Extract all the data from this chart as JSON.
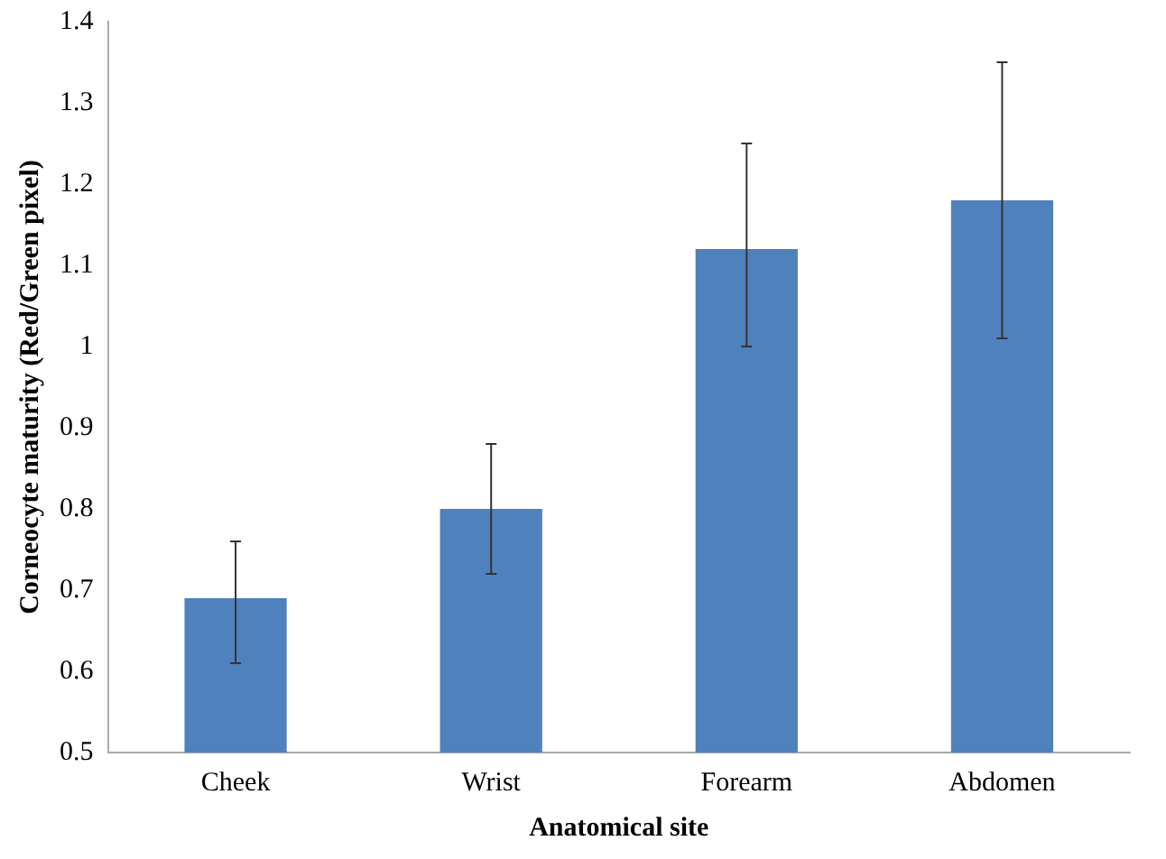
{
  "chart_data": {
    "type": "bar",
    "xlabel": "Anatomical site",
    "ylabel": "Corneocyte maturity (Red/Green pixel)",
    "categories": [
      "Cheek",
      "Wrist",
      "Forearm",
      "Abdomen"
    ],
    "values": [
      0.69,
      0.8,
      1.12,
      1.18
    ],
    "errors": [
      [
        0.61,
        0.76
      ],
      [
        0.72,
        0.88
      ],
      [
        1.0,
        1.25
      ],
      [
        1.01,
        1.35
      ]
    ],
    "color": "#4f81bd",
    "ylim": [
      0.5,
      1.4
    ],
    "yticks": [
      0.5,
      0.6,
      0.7,
      0.8,
      0.9,
      1,
      1.1,
      1.2,
      1.3,
      1.4
    ],
    "grid": false,
    "legend": false
  }
}
